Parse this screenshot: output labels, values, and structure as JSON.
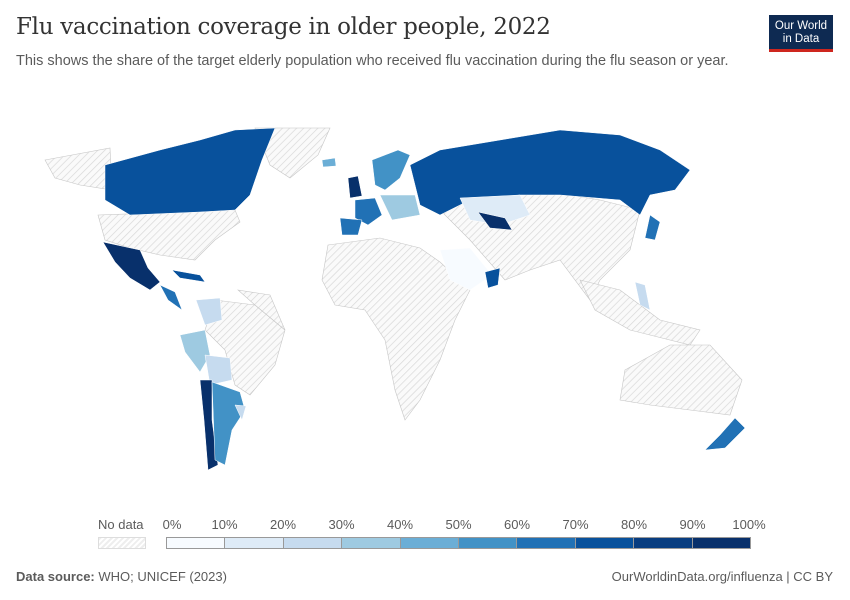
{
  "header": {
    "title": "Flu vaccination coverage in older people, 2022",
    "subtitle": "This shows the share of the target elderly population who received flu vaccination during the flu season or year.",
    "logo": "Our World in Data"
  },
  "legend": {
    "no_data_label": "No data",
    "ticks": [
      "0%",
      "10%",
      "20%",
      "30%",
      "40%",
      "50%",
      "60%",
      "70%",
      "80%",
      "90%",
      "100%"
    ],
    "colors": [
      "#f7fbff",
      "#deebf7",
      "#c6dbef",
      "#9ecae1",
      "#6baed6",
      "#4292c6",
      "#2171b5",
      "#08519c",
      "#083d80",
      "#08306b"
    ],
    "no_data_color": "#e9e9e9"
  },
  "map_regions": [
    {
      "region": "Canada",
      "bin": 7
    },
    {
      "region": "Mexico",
      "bin": 9
    },
    {
      "region": "Argentina",
      "bin": 5
    },
    {
      "region": "Chile",
      "bin": 8
    },
    {
      "region": "Peru",
      "bin": 3
    },
    {
      "region": "Bolivia",
      "bin": 2
    },
    {
      "region": "Colombia",
      "bin": 2
    },
    {
      "region": "Russia",
      "bin": 7
    },
    {
      "region": "Kazakhstan",
      "bin": 1
    },
    {
      "region": "Uzbekistan",
      "bin": 9
    },
    {
      "region": "Saudi Arabia",
      "bin": 0
    },
    {
      "region": "Oman",
      "bin": 7
    },
    {
      "region": "United Kingdom",
      "bin": 8
    },
    {
      "region": "Spain",
      "bin": 6
    },
    {
      "region": "France",
      "bin": 6
    },
    {
      "region": "Sweden",
      "bin": 5
    },
    {
      "region": "Finland",
      "bin": 4
    },
    {
      "region": "New Zealand",
      "bin": 6
    },
    {
      "region": "Philippines",
      "bin": 2
    },
    {
      "region": "Cuba",
      "bin": 8
    }
  ],
  "footer": {
    "source_label": "Data source:",
    "source": "WHO; UNICEF (2023)",
    "url": "OurWorldinData.org/influenza | CC BY"
  }
}
